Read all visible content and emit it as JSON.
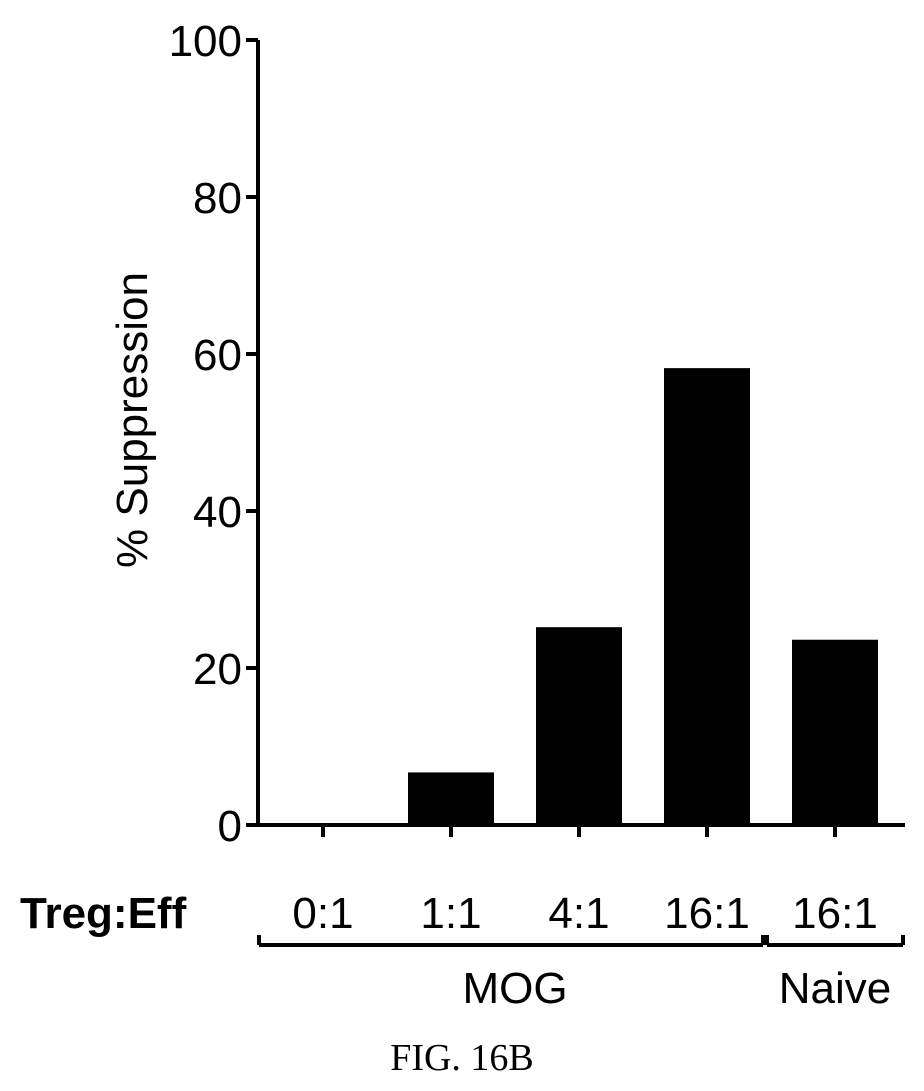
{
  "chart_data": {
    "type": "bar",
    "ylabel": "% Suppression",
    "ylim": [
      0,
      100
    ],
    "yticks": [
      0,
      20,
      40,
      60,
      80,
      100
    ],
    "row_label": "Treg:Eff",
    "categories": [
      "0:1",
      "1:1",
      "4:1",
      "16:1",
      "16:1"
    ],
    "values": [
      0,
      6.7,
      25.2,
      58.2,
      23.6
    ],
    "bar_color": "#000000",
    "groups": [
      {
        "label": "MOG",
        "categories": [
          0,
          1,
          2,
          3
        ]
      },
      {
        "label": "Naive",
        "categories": [
          4
        ]
      }
    ]
  },
  "caption": "FIG. 16B"
}
